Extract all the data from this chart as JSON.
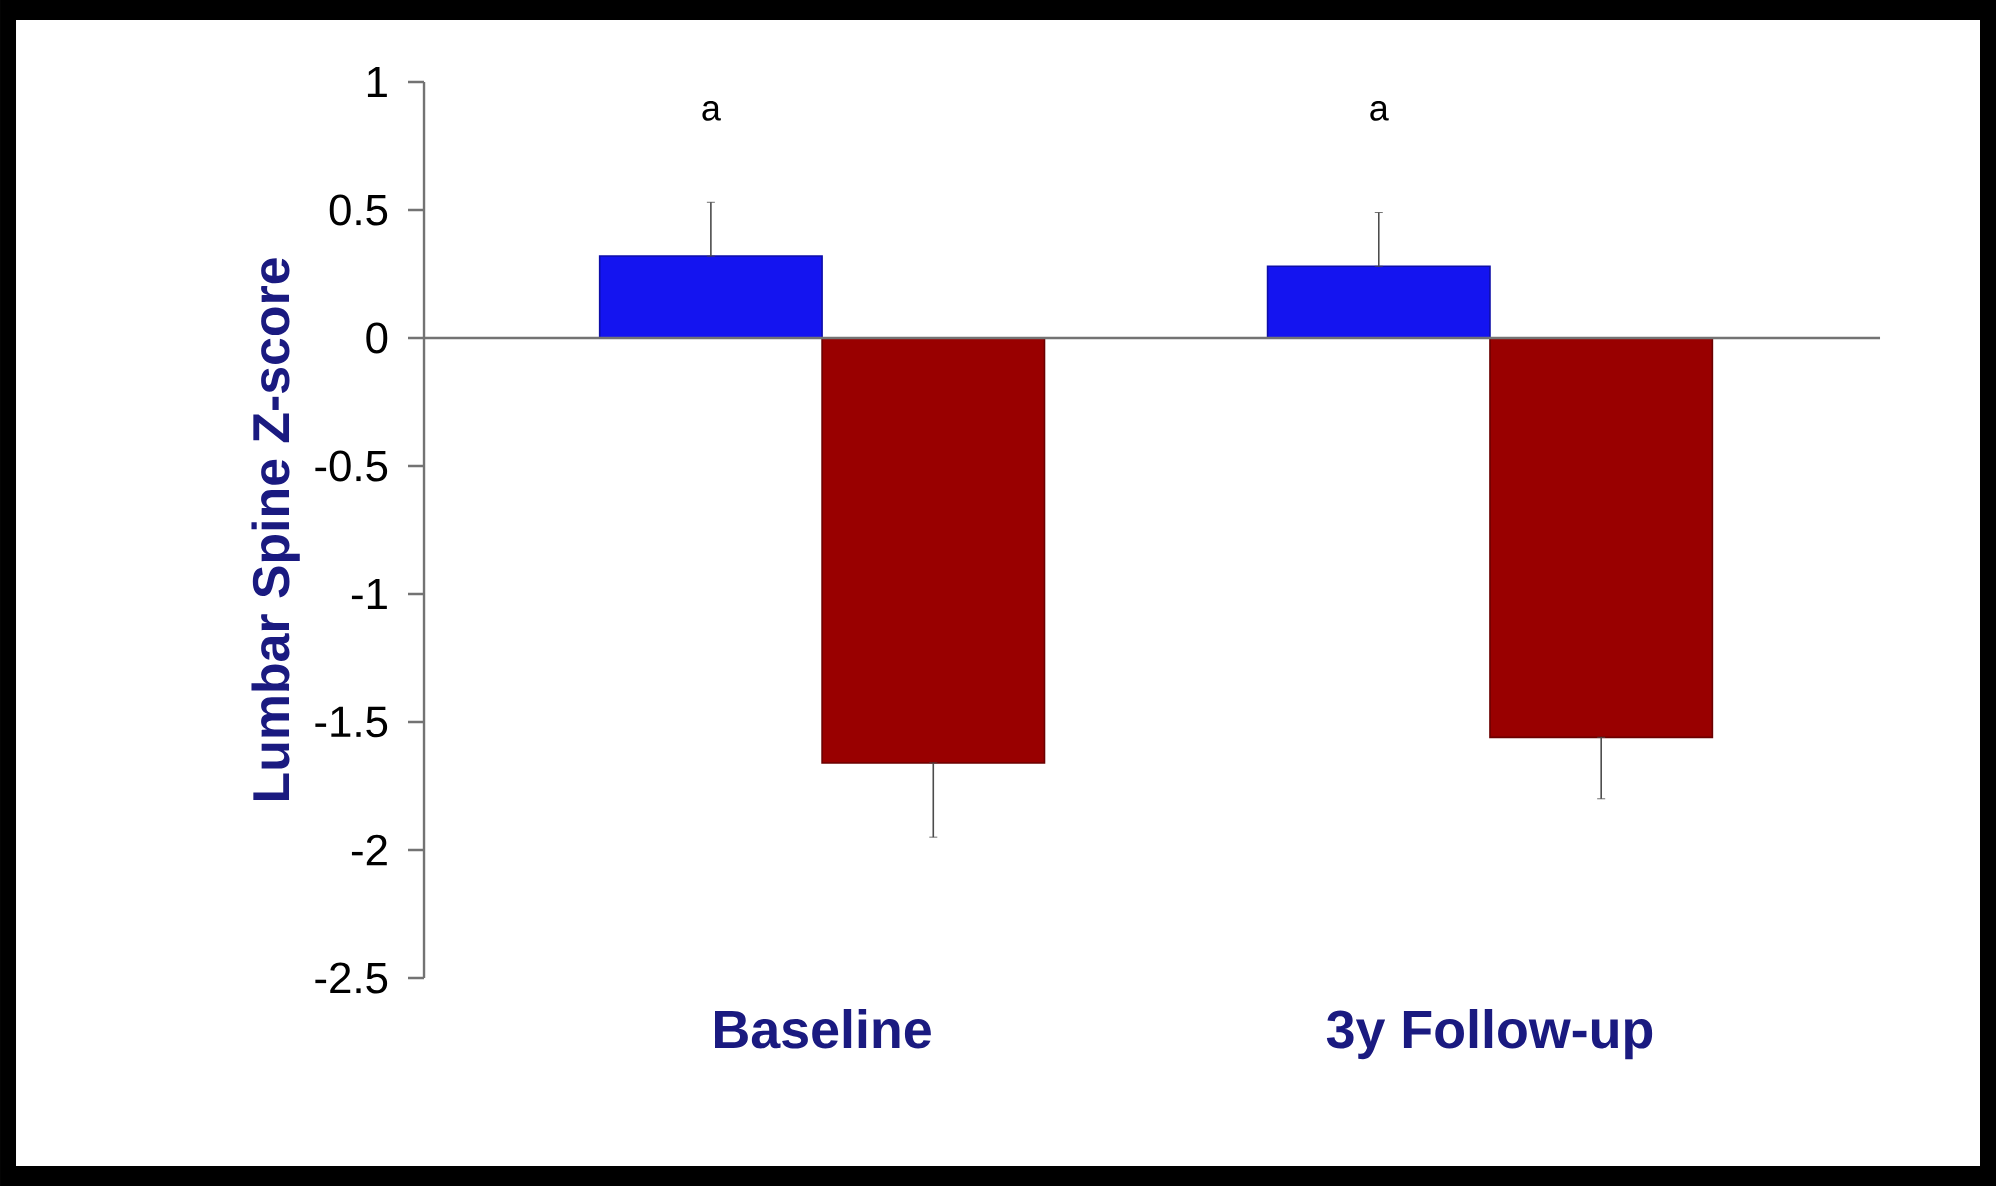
{
  "chart_data": {
    "type": "bar",
    "ylabel": "Lumbar Spine Z-score",
    "categories": [
      "Baseline",
      "3y Follow-up"
    ],
    "series": [
      {
        "color": "#1414f0",
        "values": [
          0.32,
          0.28
        ],
        "errors": [
          [
            0.32,
            0.53
          ],
          [
            0.28,
            0.49
          ]
        ]
      },
      {
        "color": "#990000",
        "values": [
          -1.66,
          -1.56
        ],
        "errors": [
          [
            -1.95,
            -1.66
          ],
          [
            -1.8,
            -1.56
          ]
        ]
      }
    ],
    "ylim": [
      -2.5,
      1
    ],
    "yticks": [
      -2.5,
      -2,
      -1.5,
      -1,
      -0.5,
      0,
      0.5,
      1
    ],
    "annotations": [
      "a",
      "a"
    ]
  }
}
